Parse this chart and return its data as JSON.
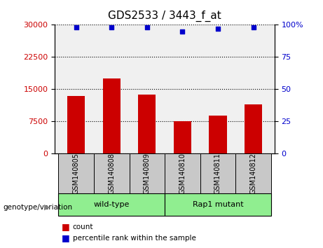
{
  "title": "GDS2533 / 3443_f_at",
  "samples": [
    "GSM140805",
    "GSM140808",
    "GSM140809",
    "GSM140810",
    "GSM140811",
    "GSM140812"
  ],
  "counts": [
    13500,
    17500,
    13800,
    7500,
    8800,
    11500
  ],
  "percentile_ranks": [
    98,
    98,
    98,
    95,
    97,
    98
  ],
  "groups": [
    {
      "label": "wild-type",
      "indices": [
        0,
        1,
        2
      ],
      "color": "#90EE90"
    },
    {
      "label": "Rap1 mutant",
      "indices": [
        3,
        4,
        5
      ],
      "color": "#90EE90"
    }
  ],
  "bar_color": "#CC0000",
  "dot_color": "#0000CC",
  "y_left_label": "",
  "y_right_label": "",
  "y_left_ticks": [
    0,
    7500,
    15000,
    22500,
    30000
  ],
  "y_right_ticks": [
    0,
    25,
    50,
    75,
    100
  ],
  "ylim_left": [
    0,
    30000
  ],
  "ylim_right": [
    0,
    100
  ],
  "bg_plot": "#F0F0F0",
  "legend_count_label": "count",
  "legend_pct_label": "percentile rank within the sample",
  "group_label_prefix": "genotype/variation",
  "genotype_box_color": "#C8C8C8",
  "group_box_color": "#90EE90"
}
